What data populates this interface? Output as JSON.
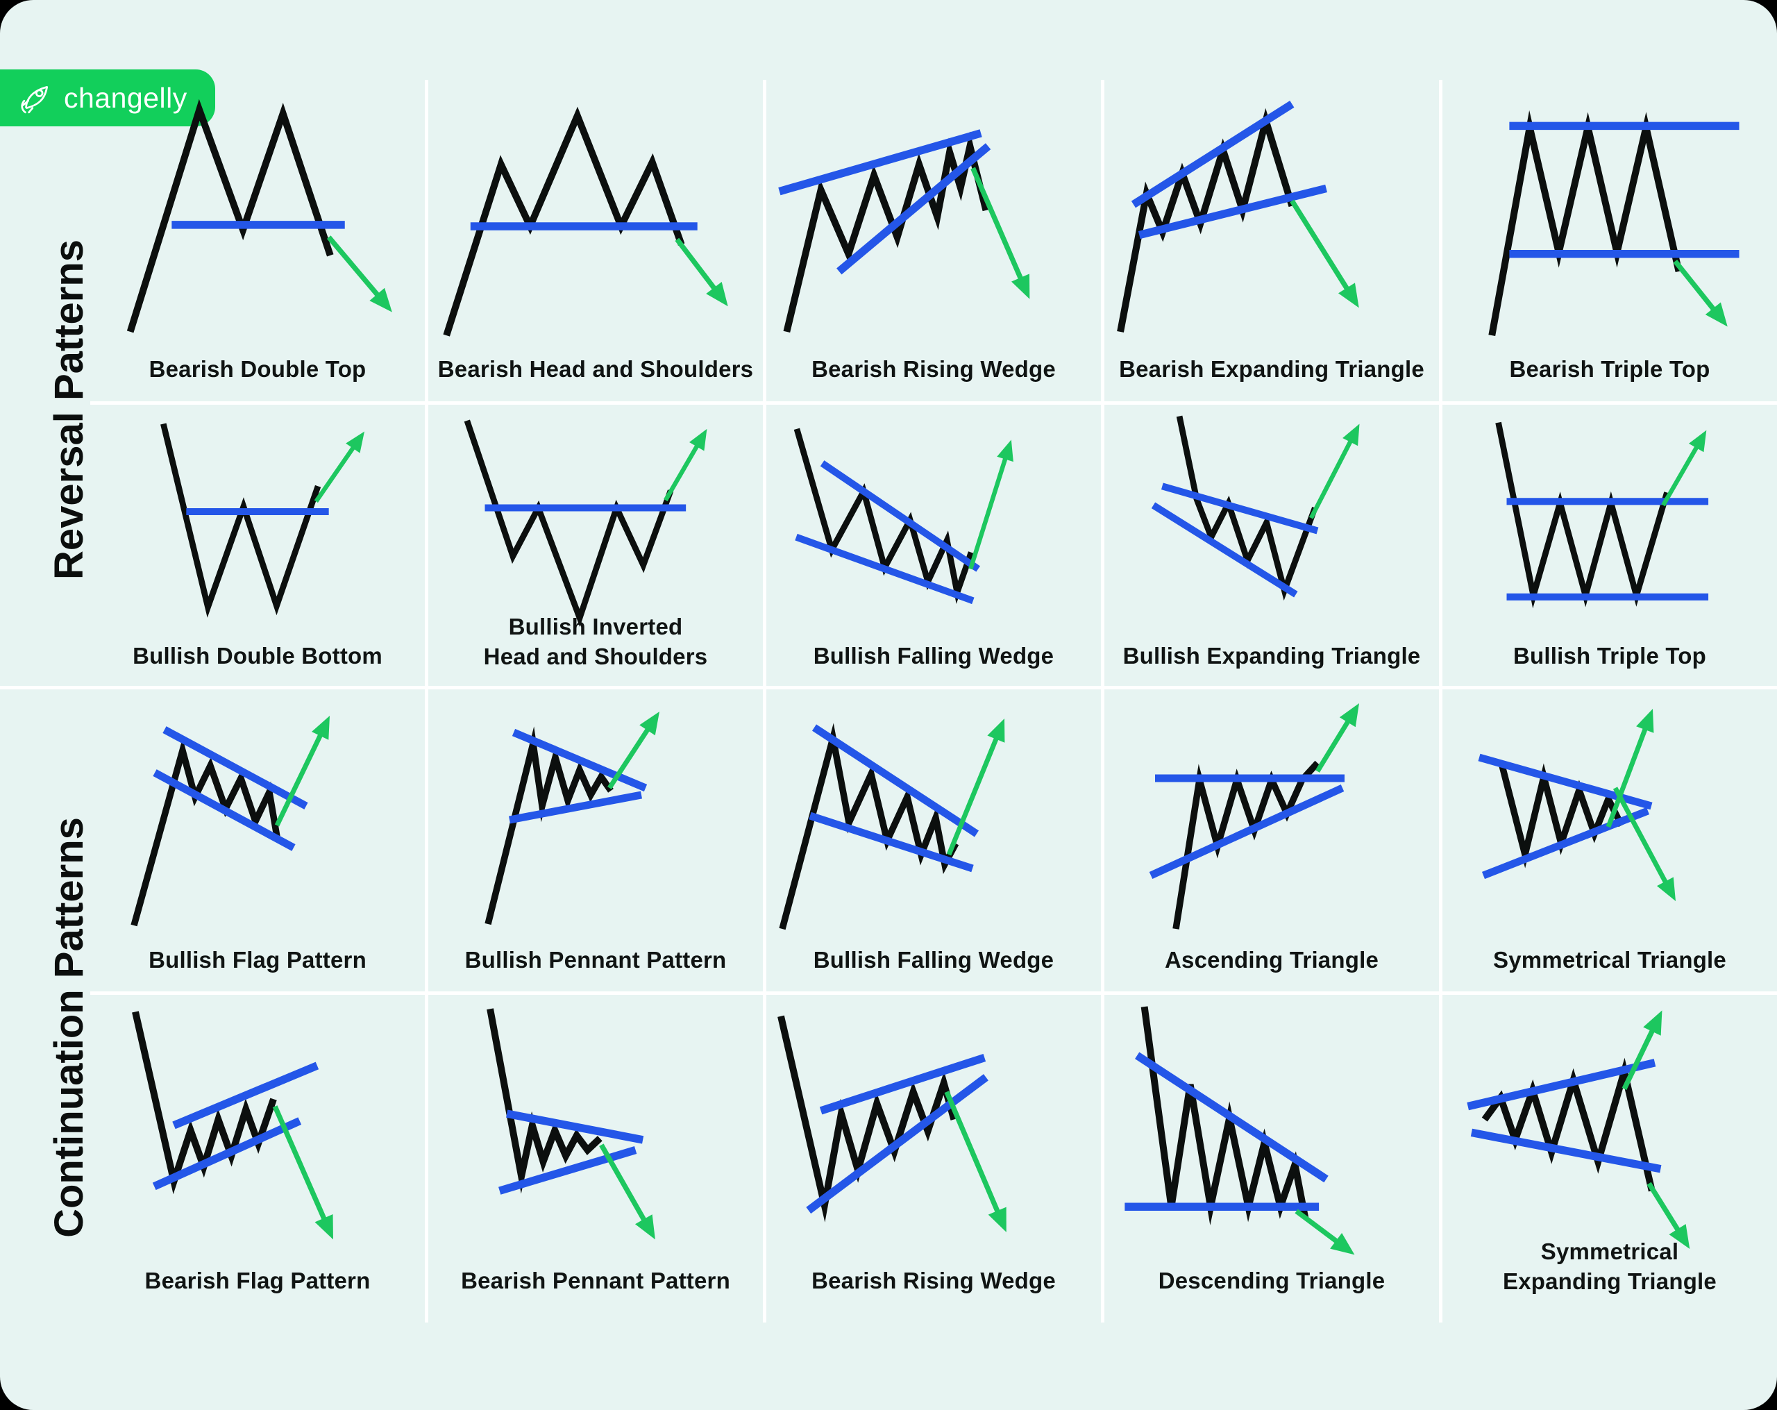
{
  "logo": {
    "brand": "changelly",
    "icon": "rocket-icon"
  },
  "colors": {
    "frame": "#000000",
    "card": "#e7f4f2",
    "price_line": "#0c0f0e",
    "trend_line": "#2456e8",
    "arrow_green": "#1dc75f",
    "logo_green": "#12cf5b",
    "separator": "#ffffff",
    "label_text": "#101413"
  },
  "sections": [
    {
      "label": "Reversal Patterns",
      "rows": [
        [
          {
            "label": "Bearish Double Top",
            "shape": "double-top"
          },
          {
            "label": "Bearish Head and Shoulders",
            "shape": "head-shoulders-top"
          },
          {
            "label": "Bearish Rising Wedge",
            "shape": "rising-wedge-reversal"
          },
          {
            "label": "Bearish Expanding Triangle",
            "shape": "expanding-triangle-bear"
          },
          {
            "label": "Bearish Triple Top",
            "shape": "triple-top"
          }
        ],
        [
          {
            "label": "Bullish Double Bottom",
            "shape": "double-bottom"
          },
          {
            "label": "Bullish Inverted\nHead and Shoulders",
            "shape": "inverted-head-shoulders"
          },
          {
            "label": "Bullish Falling Wedge",
            "shape": "falling-wedge-reversal"
          },
          {
            "label": "Bullish Expanding Triangle",
            "shape": "expanding-triangle-bull"
          },
          {
            "label": "Bullish Triple Top",
            "shape": "triple-bottom"
          }
        ]
      ]
    },
    {
      "label": "Continuation Patterns",
      "rows": [
        [
          {
            "label": "Bullish Flag Pattern",
            "shape": "flag-bull"
          },
          {
            "label": "Bullish Pennant Pattern",
            "shape": "pennant-bull"
          },
          {
            "label": "Bullish Falling Wedge",
            "shape": "falling-wedge-continuation"
          },
          {
            "label": "Ascending Triangle",
            "shape": "ascending-triangle"
          },
          {
            "label": "Symmetrical Triangle",
            "shape": "symmetrical-triangle"
          }
        ],
        [
          {
            "label": "Bearish Flag Pattern",
            "shape": "flag-bear"
          },
          {
            "label": "Bearish Pennant Pattern",
            "shape": "pennant-bear"
          },
          {
            "label": "Bearish Rising Wedge",
            "shape": "rising-wedge-continuation"
          },
          {
            "label": "Descending Triangle",
            "shape": "descending-triangle"
          },
          {
            "label": "Symmetrical\nExpanding Triangle",
            "shape": "symmetrical-expanding-triangle"
          }
        ]
      ]
    }
  ]
}
